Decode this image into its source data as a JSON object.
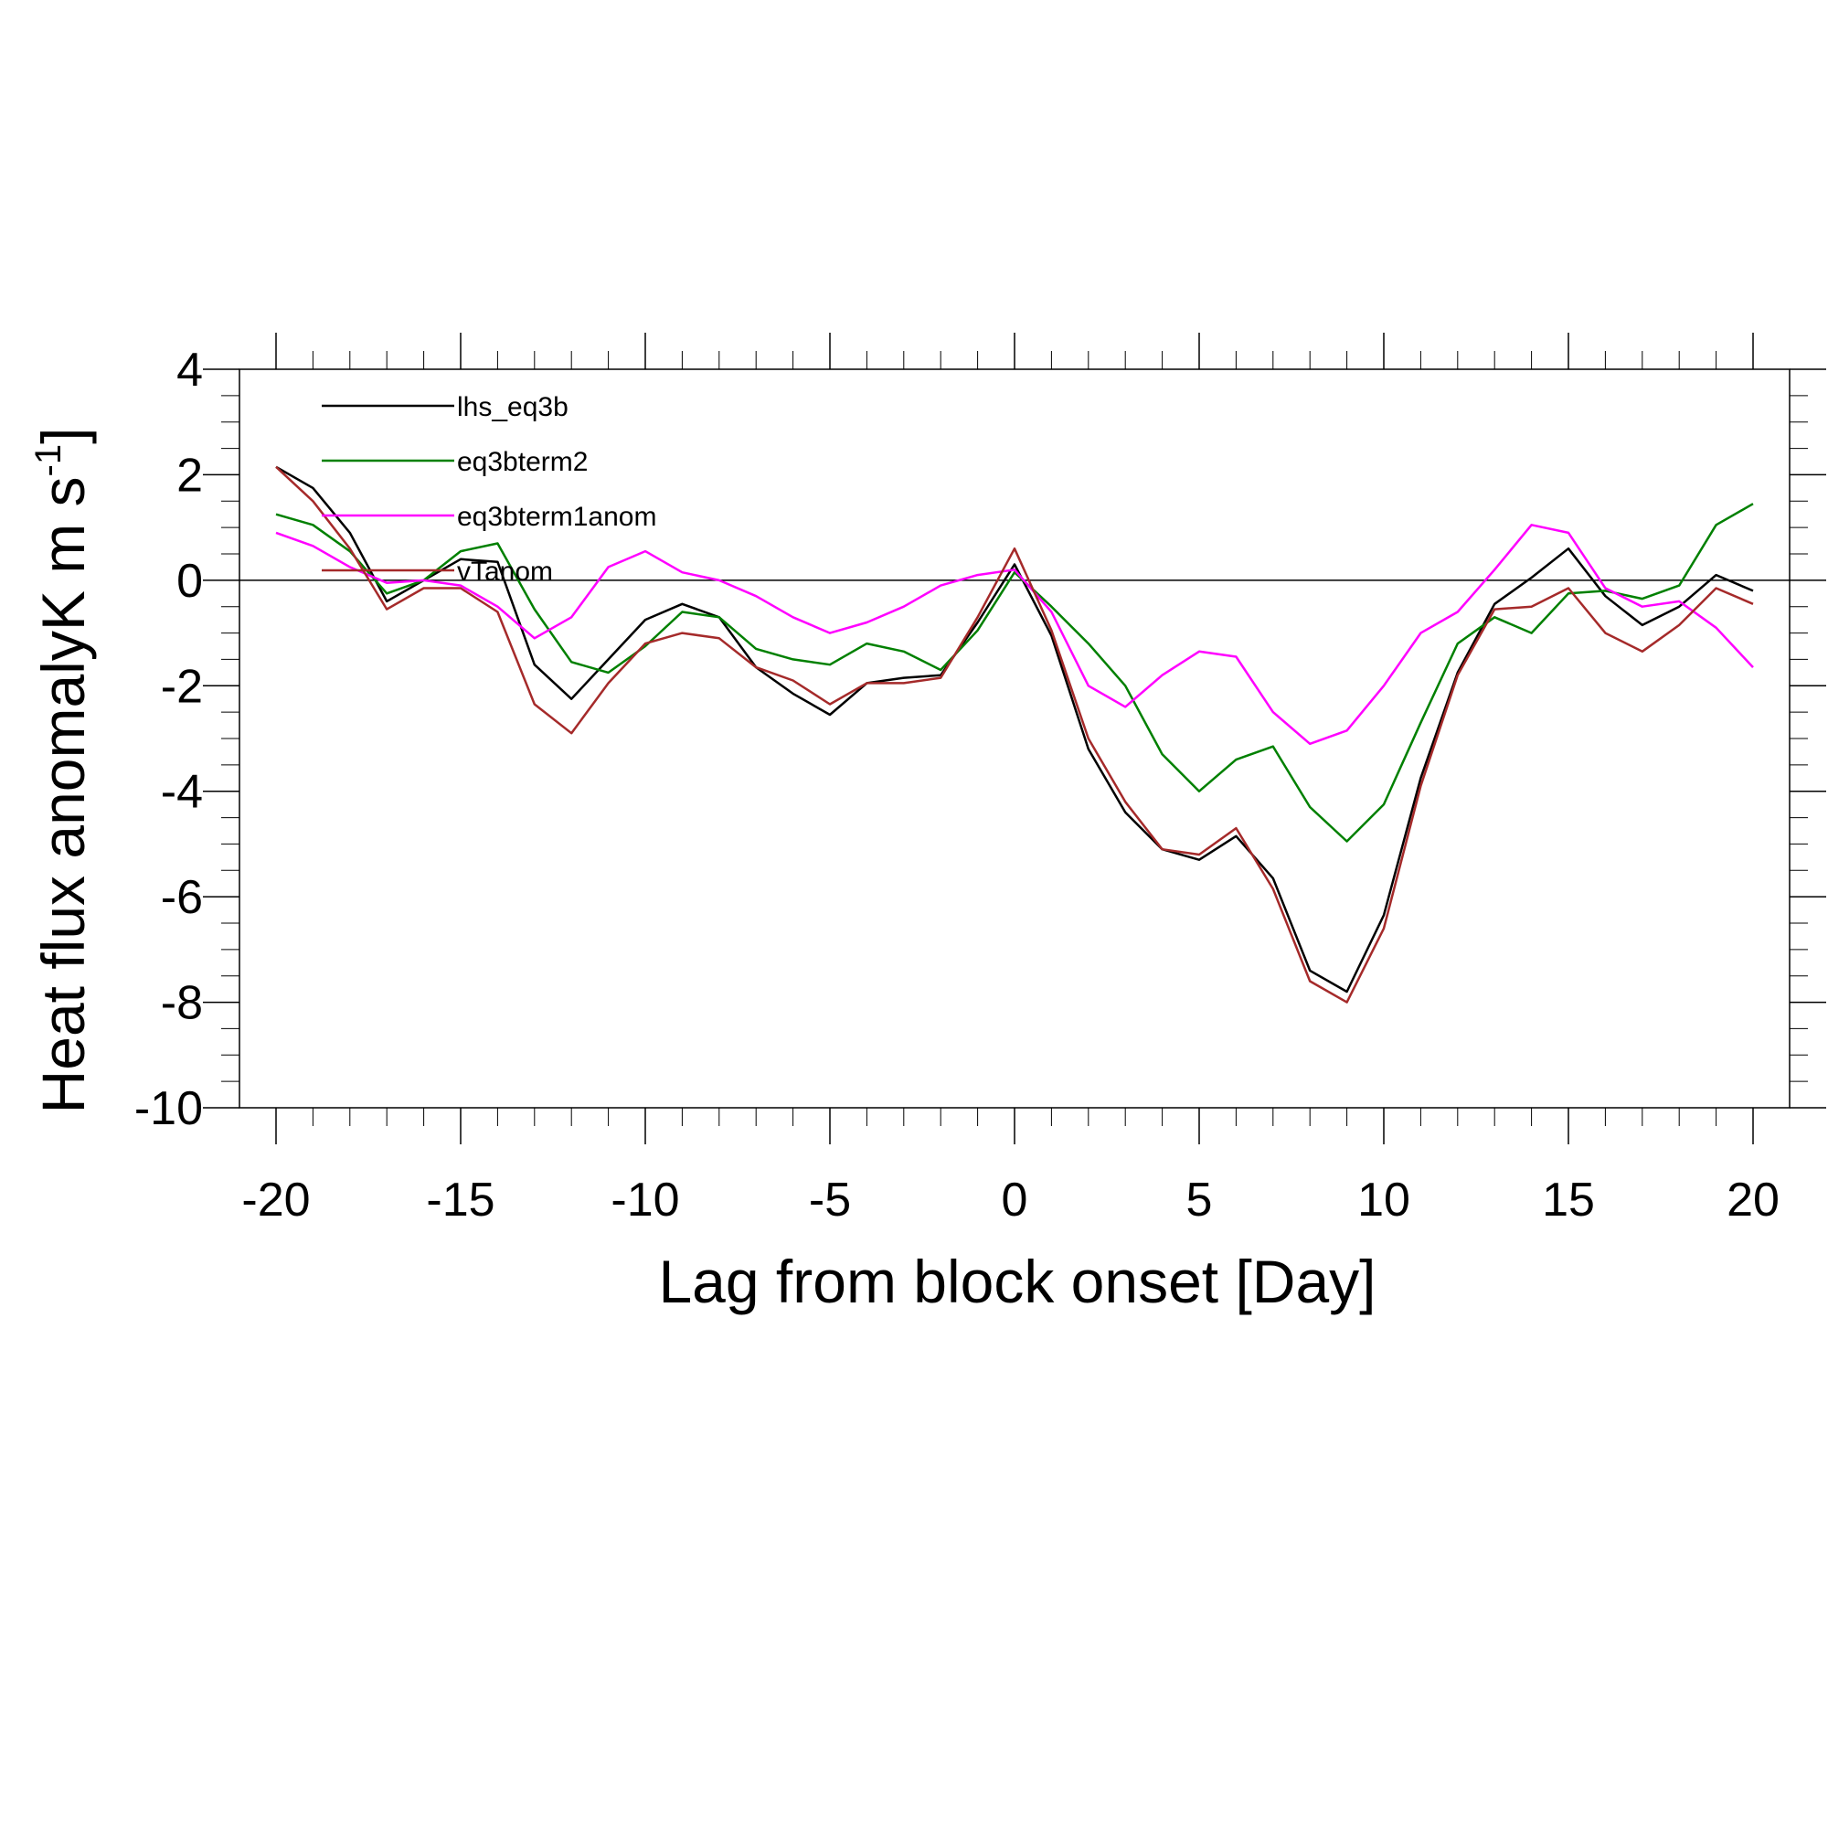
{
  "chart_data": {
    "type": "line",
    "xlabel": "Lag from block onset [Day]",
    "ylabel_main": "Heat flux anomalyK m s",
    "ylabel_sup": "-1",
    "ylabel_end": "]",
    "xlim": [
      -20,
      20
    ],
    "ylim": [
      -10,
      4
    ],
    "x_ticks": [
      -20,
      -15,
      -10,
      -5,
      0,
      5,
      10,
      15,
      20
    ],
    "y_ticks": [
      -10,
      -8,
      -6,
      -4,
      -2,
      0,
      2,
      4
    ],
    "zero_line": true,
    "legend_placement": "top-left",
    "x": [
      -20,
      -19,
      -18,
      -17,
      -16,
      -15,
      -14,
      -13,
      -12,
      -11,
      -10,
      -9,
      -8,
      -7,
      -6,
      -5,
      -4,
      -3,
      -2,
      -1,
      0,
      1,
      2,
      3,
      4,
      5,
      6,
      7,
      8,
      9,
      10,
      11,
      12,
      13,
      14,
      15,
      16,
      17,
      18,
      19,
      20
    ],
    "series": [
      {
        "name": "lhs_eq3b",
        "color": "#000000",
        "values": [
          2.15,
          1.75,
          0.9,
          -0.4,
          0.0,
          0.4,
          0.35,
          -1.6,
          -2.25,
          -1.5,
          -0.75,
          -0.45,
          -0.7,
          -1.65,
          -2.15,
          -2.55,
          -1.95,
          -1.85,
          -1.8,
          -0.8,
          0.3,
          -1.05,
          -3.2,
          -4.4,
          -5.1,
          -5.3,
          -4.85,
          -5.65,
          -7.4,
          -7.8,
          -6.35,
          -3.75,
          -1.75,
          -0.45,
          0.05,
          0.6,
          -0.3,
          -0.85,
          -0.5,
          0.1,
          -0.2
        ]
      },
      {
        "name": "eq3bterm2",
        "color": "#008000",
        "values": [
          1.25,
          1.05,
          0.55,
          -0.25,
          0.0,
          0.55,
          0.7,
          -0.55,
          -1.55,
          -1.75,
          -1.25,
          -0.6,
          -0.7,
          -1.3,
          -1.5,
          -1.6,
          -1.2,
          -1.35,
          -1.7,
          -0.95,
          0.15,
          -0.5,
          -1.2,
          -2.0,
          -3.3,
          -4.0,
          -3.4,
          -3.15,
          -4.3,
          -4.95,
          -4.25,
          -2.7,
          -1.2,
          -0.7,
          -1.0,
          -0.25,
          -0.2,
          -0.35,
          -0.1,
          1.05,
          1.45
        ]
      },
      {
        "name": "eq3bterm1anom",
        "color": "#ff00ff",
        "values": [
          0.9,
          0.65,
          0.25,
          -0.05,
          0.0,
          -0.1,
          -0.5,
          -1.1,
          -0.7,
          0.25,
          0.55,
          0.15,
          0.0,
          -0.3,
          -0.7,
          -1.0,
          -0.8,
          -0.5,
          -0.1,
          0.1,
          0.2,
          -0.6,
          -2.0,
          -2.4,
          -1.8,
          -1.35,
          -1.45,
          -2.5,
          -3.1,
          -2.85,
          -2.0,
          -1.0,
          -0.6,
          0.2,
          1.05,
          0.9,
          -0.15,
          -0.5,
          -0.4,
          -0.9,
          -1.65
        ]
      },
      {
        "name": "vTanom",
        "color": "#a52a2a",
        "values": [
          2.15,
          1.5,
          0.6,
          -0.55,
          -0.15,
          -0.15,
          -0.6,
          -2.35,
          -2.9,
          -1.95,
          -1.2,
          -1.0,
          -1.1,
          -1.65,
          -1.9,
          -2.35,
          -1.95,
          -1.95,
          -1.85,
          -0.7,
          0.6,
          -0.95,
          -3.0,
          -4.2,
          -5.1,
          -5.2,
          -4.7,
          -5.85,
          -7.6,
          -8.0,
          -6.6,
          -3.9,
          -1.8,
          -0.55,
          -0.5,
          -0.15,
          -1.0,
          -1.35,
          -0.85,
          -0.15,
          -0.45
        ]
      }
    ]
  }
}
